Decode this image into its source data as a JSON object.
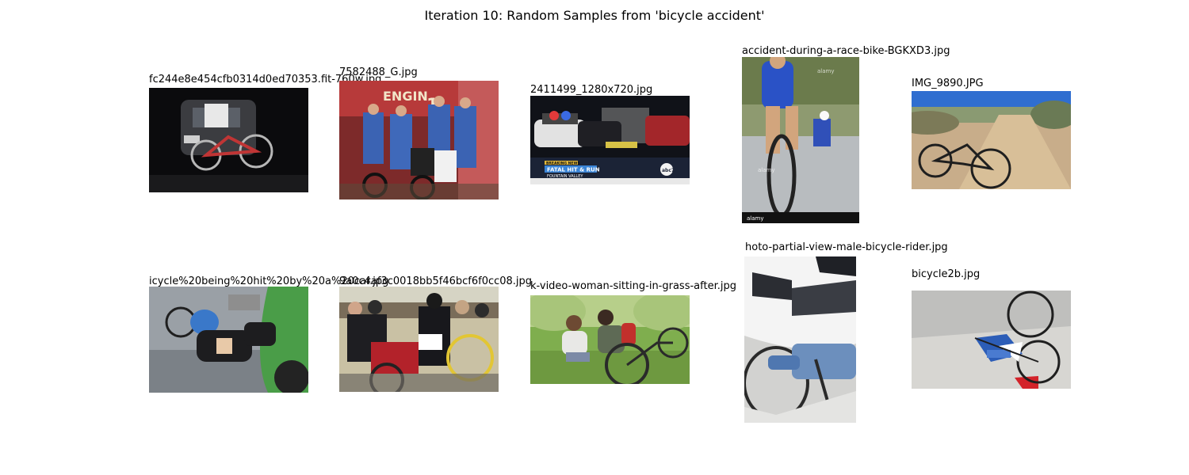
{
  "figure": {
    "title": "Iteration 10: Random Samples from 'bicycle accident'"
  },
  "samples": [
    {
      "filename": "fc244e8e454cfb0314d0ed70353.fit-760w.jpg"
    },
    {
      "filename": "7582488_G.jpg"
    },
    {
      "filename": "2411499_1280x720.jpg"
    },
    {
      "filename": "accident-during-a-race-bike-BGKXD3.jpg"
    },
    {
      "filename": "IMG_9890.JPG"
    },
    {
      "filename": "icycle%20being%20hit%20by%20a%20car.jpg"
    },
    {
      "filename": "9a0c4af3c0018bb5f46bcf6f0cc08.jpg"
    },
    {
      "filename": "k-video-woman-sitting-in-grass-after.jpg"
    },
    {
      "filename": "hoto-partial-view-male-bicycle-rider.jpg"
    },
    {
      "filename": "bicycle2b.jpg"
    }
  ],
  "overlays": {
    "engine_text": "ENGIN",
    "engine_number": "1",
    "news_tag": "BREAKING NEWS",
    "news_headline": "FATAL HIT & RUN",
    "news_location": "FOUNTAIN VALLEY",
    "news_logo": "abc7",
    "stock_watermark": "alamy"
  }
}
